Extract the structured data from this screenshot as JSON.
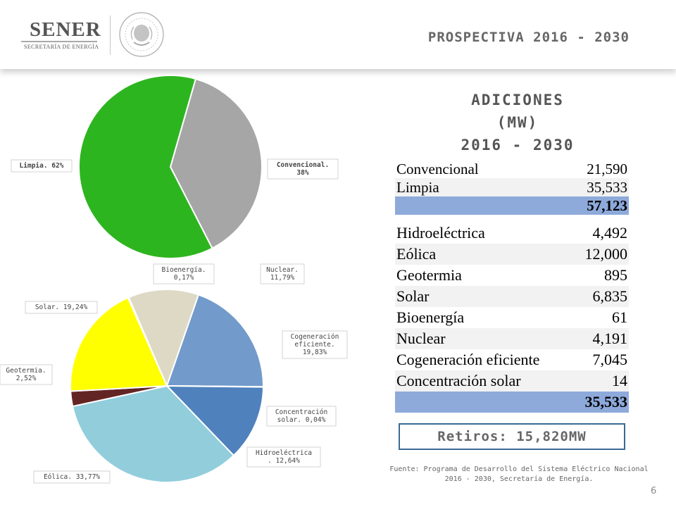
{
  "header": {
    "logo_text": "SENER",
    "logo_sub": "SECRETARÍA DE ENERGÍA",
    "title": "PROSPECTIVA 2016 - 2030"
  },
  "colors": {
    "limpia": "#2db51f",
    "convencional": "#a6a6a6",
    "nuclear": "#ddd9c4",
    "cogeneracion": "#729acb",
    "concentracion": "#4a6fa0",
    "hidroelectrica": "#4f81bd",
    "eolica": "#92cddc",
    "geotermia": "#632523",
    "solar": "#ffff00",
    "bioenergia": "#f2f2f2",
    "table_total": "#8eaadb",
    "retiros_border": "#3a6b94"
  },
  "chart_data": [
    {
      "type": "pie",
      "slices": [
        {
          "label": "Convencional",
          "value": 38,
          "data_label": "Convencional. 38%"
        },
        {
          "label": "Limpia",
          "value": 62,
          "data_label": "Limpia. 62%"
        }
      ]
    },
    {
      "type": "pie",
      "slices": [
        {
          "label": "Bioenergía",
          "value": 0.17,
          "data_label": "Bioenergía. 0,17%"
        },
        {
          "label": "Nuclear",
          "value": 11.79,
          "data_label": "Nuclear. 11,79%"
        },
        {
          "label": "Cogeneración eficiente",
          "value": 19.83,
          "data_label": "Cogeneración eficiente. 19,83%"
        },
        {
          "label": "Concentración solar",
          "value": 0.04,
          "data_label": "Concentración solar. 0,04%"
        },
        {
          "label": "Hidroeléctrica",
          "value": 12.64,
          "data_label": "Hidroeléctrica . 12,64%"
        },
        {
          "label": "Eólica",
          "value": 33.77,
          "data_label": "Eólica. 33,77%"
        },
        {
          "label": "Geotermia",
          "value": 2.52,
          "data_label": "Geotermia. 2,52%"
        },
        {
          "label": "Solar",
          "value": 19.24,
          "data_label": "Solar. 19,24%"
        }
      ]
    }
  ],
  "table": {
    "title_lines": [
      "ADICIONES",
      "(MW)",
      "2016 - 2030"
    ],
    "summary_rows": [
      {
        "label": "Convencional",
        "value": "21,590"
      },
      {
        "label": "Limpia",
        "value": "35,533"
      },
      {
        "label": "",
        "value": "57,123"
      }
    ],
    "detail_rows": [
      {
        "label": "Hidroeléctrica",
        "value": "4,492"
      },
      {
        "label": "Eólica",
        "value": "12,000"
      },
      {
        "label": "Geotermia",
        "value": "895"
      },
      {
        "label": "Solar",
        "value": "6,835"
      },
      {
        "label": "Bioenergía",
        "value": "61"
      },
      {
        "label": "Nuclear",
        "value": "4,191"
      },
      {
        "label": "Cogeneración eficiente",
        "value": "7,045"
      },
      {
        "label": "Concentración solar",
        "value": "14"
      },
      {
        "label": "",
        "value": "35,533"
      }
    ]
  },
  "retiros": "Retiros: 15,820MW",
  "fuente": "Fuente: Programa de Desarrollo del Sistema Eléctrico Nacional 2016 - 2030, Secretaría de Energía.",
  "page_number": "6"
}
